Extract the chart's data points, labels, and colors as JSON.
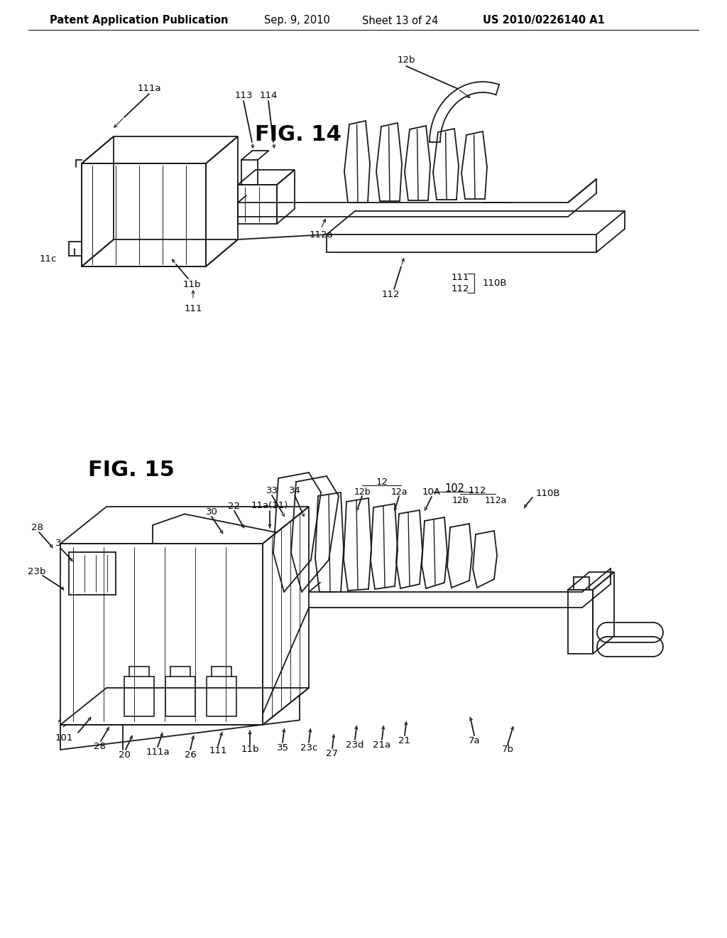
{
  "background_color": "#ffffff",
  "header_text": "Patent Application Publication",
  "header_date": "Sep. 9, 2010",
  "header_sheet": "Sheet 13 of 24",
  "header_patent": "US 2010/0226140 A1",
  "text_color": "#000000",
  "line_color": "#1a1a1a",
  "line_width": 1.3,
  "label_fontsize": 9.5,
  "fig14_title": "FIG. 14",
  "fig15_title": "FIG. 15"
}
